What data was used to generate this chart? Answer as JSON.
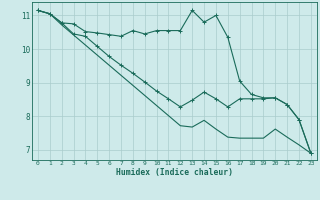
{
  "xlabel": "Humidex (Indice chaleur)",
  "background_color": "#ceeaea",
  "line_color": "#1a6b5a",
  "grid_color": "#aacccc",
  "xlim": [
    -0.5,
    23.5
  ],
  "ylim": [
    6.7,
    11.4
  ],
  "xticks": [
    0,
    1,
    2,
    3,
    4,
    5,
    6,
    7,
    8,
    9,
    10,
    11,
    12,
    13,
    14,
    15,
    16,
    17,
    18,
    19,
    20,
    21,
    22,
    23
  ],
  "yticks": [
    7,
    8,
    9,
    10,
    11
  ],
  "line1_x": [
    0,
    1,
    2,
    3,
    4,
    5,
    6,
    7,
    8,
    9,
    10,
    11,
    12,
    13,
    14,
    15,
    16,
    17,
    18,
    19,
    20,
    21,
    22,
    23
  ],
  "line1_y": [
    11.15,
    11.05,
    10.78,
    10.75,
    10.52,
    10.48,
    10.43,
    10.38,
    10.55,
    10.45,
    10.55,
    10.55,
    10.55,
    11.15,
    10.8,
    11.0,
    10.35,
    9.05,
    8.65,
    8.55,
    8.55,
    8.35,
    7.9,
    6.9
  ],
  "line2_x": [
    0,
    1,
    2,
    3,
    4,
    5,
    6,
    7,
    8,
    9,
    10,
    11,
    12,
    13,
    14,
    15,
    16,
    17,
    18,
    19,
    20,
    21,
    22,
    23
  ],
  "line2_y": [
    11.15,
    11.05,
    10.78,
    10.45,
    10.38,
    10.08,
    9.78,
    9.52,
    9.28,
    9.02,
    8.75,
    8.52,
    8.28,
    8.48,
    8.72,
    8.52,
    8.28,
    8.52,
    8.52,
    8.52,
    8.55,
    8.35,
    7.9,
    6.9
  ],
  "line3_x": [
    0,
    1,
    2,
    3,
    4,
    5,
    6,
    7,
    8,
    9,
    10,
    11,
    12,
    13,
    14,
    15,
    16,
    17,
    18,
    19,
    20,
    21,
    22,
    23
  ],
  "line3_y": [
    11.15,
    11.05,
    10.72,
    10.42,
    10.12,
    9.82,
    9.52,
    9.22,
    8.92,
    8.62,
    8.32,
    8.02,
    7.72,
    7.68,
    7.88,
    7.62,
    7.38,
    7.35,
    7.35,
    7.35,
    7.62,
    7.38,
    7.15,
    6.9
  ]
}
